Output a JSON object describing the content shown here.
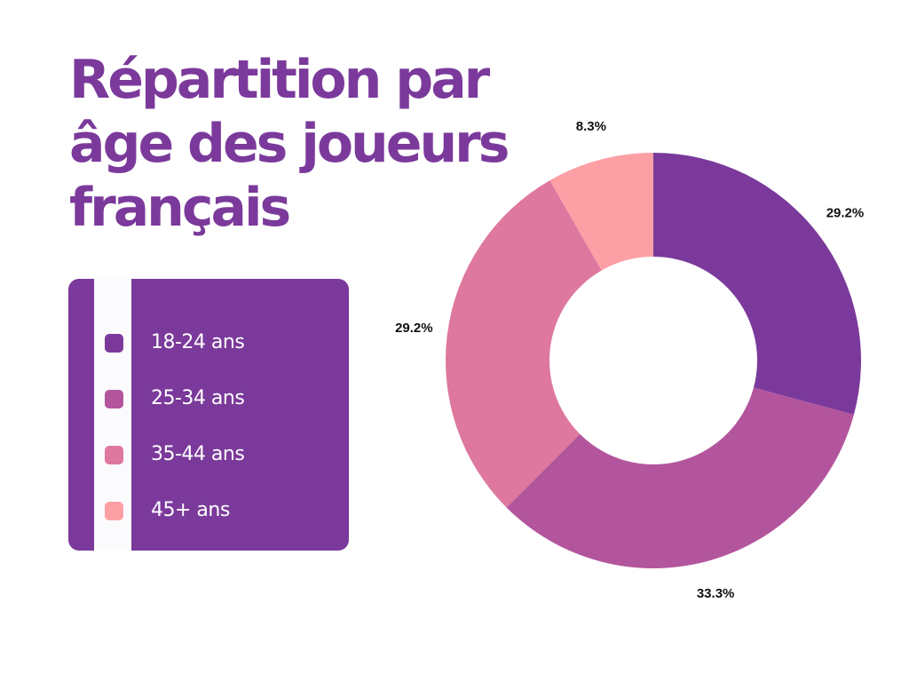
{
  "title_lines": [
    "Répartition par",
    "âge des joueurs",
    "français"
  ],
  "colors": {
    "title": "#7b3a9b",
    "legend_bg": "#7b3a9b",
    "legend_stripe": "#fbfafc",
    "legend_text": "#ffffff"
  },
  "chart_data": {
    "type": "pie",
    "style": "donut",
    "title": "Répartition par âge des joueurs français",
    "legend_position": "left",
    "slices": [
      {
        "label": "18-24 ans",
        "value": 29.2,
        "value_label": "29.2%",
        "color": "#7b3a9b"
      },
      {
        "label": "25-34 ans",
        "value": 33.3,
        "value_label": "33.3%",
        "color": "#b3559d"
      },
      {
        "label": "35-44  ans",
        "value": 29.2,
        "value_label": "29.2%",
        "color": "#de789f"
      },
      {
        "label": "45+ ans",
        "value": 8.3,
        "value_label": "8.3%",
        "color": "#fda0a6"
      }
    ]
  }
}
